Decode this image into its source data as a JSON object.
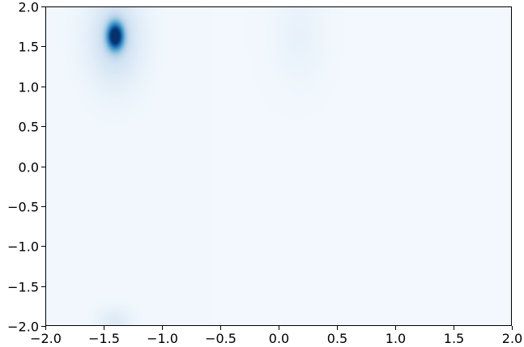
{
  "chart_data": {
    "type": "heatmap",
    "title": "",
    "xlabel": "",
    "ylabel": "",
    "xlim": [
      -2.0,
      2.0
    ],
    "ylim": [
      -2.0,
      2.0
    ],
    "grid": false,
    "colormap": "Blues",
    "x_ticks": [
      {
        "value": -2.0,
        "label": "−2.0"
      },
      {
        "value": -1.5,
        "label": "−1.5"
      },
      {
        "value": -1.0,
        "label": "−1.0"
      },
      {
        "value": -0.5,
        "label": "−0.5"
      },
      {
        "value": 0.0,
        "label": "0.0"
      },
      {
        "value": 0.5,
        "label": "0.5"
      },
      {
        "value": 1.0,
        "label": "1.0"
      },
      {
        "value": 1.5,
        "label": "1.5"
      },
      {
        "value": 2.0,
        "label": "2.0"
      }
    ],
    "y_ticks": [
      {
        "value": -2.0,
        "label": "−2.0"
      },
      {
        "value": -1.5,
        "label": "−1.5"
      },
      {
        "value": -1.0,
        "label": "−1.0"
      },
      {
        "value": -0.5,
        "label": "−0.5"
      },
      {
        "value": 0.0,
        "label": "0.0"
      },
      {
        "value": 0.5,
        "label": "0.5"
      },
      {
        "value": 1.0,
        "label": "1.0"
      },
      {
        "value": 1.5,
        "label": "1.5"
      },
      {
        "value": 2.0,
        "label": "2.0"
      }
    ],
    "density_peaks": [
      {
        "x": -1.4,
        "y": 1.63,
        "sx": 0.05,
        "sy": 0.12,
        "weight": 1.0
      },
      {
        "x": -1.4,
        "y": 1.6,
        "sx": 0.16,
        "sy": 0.4,
        "weight": 0.2
      },
      {
        "x": -1.4,
        "y": -1.95,
        "sx": 0.1,
        "sy": 0.12,
        "weight": 0.1
      },
      {
        "x": 0.18,
        "y": 1.65,
        "sx": 0.15,
        "sy": 0.4,
        "weight": 0.05
      }
    ],
    "background_level": 0.03
  }
}
